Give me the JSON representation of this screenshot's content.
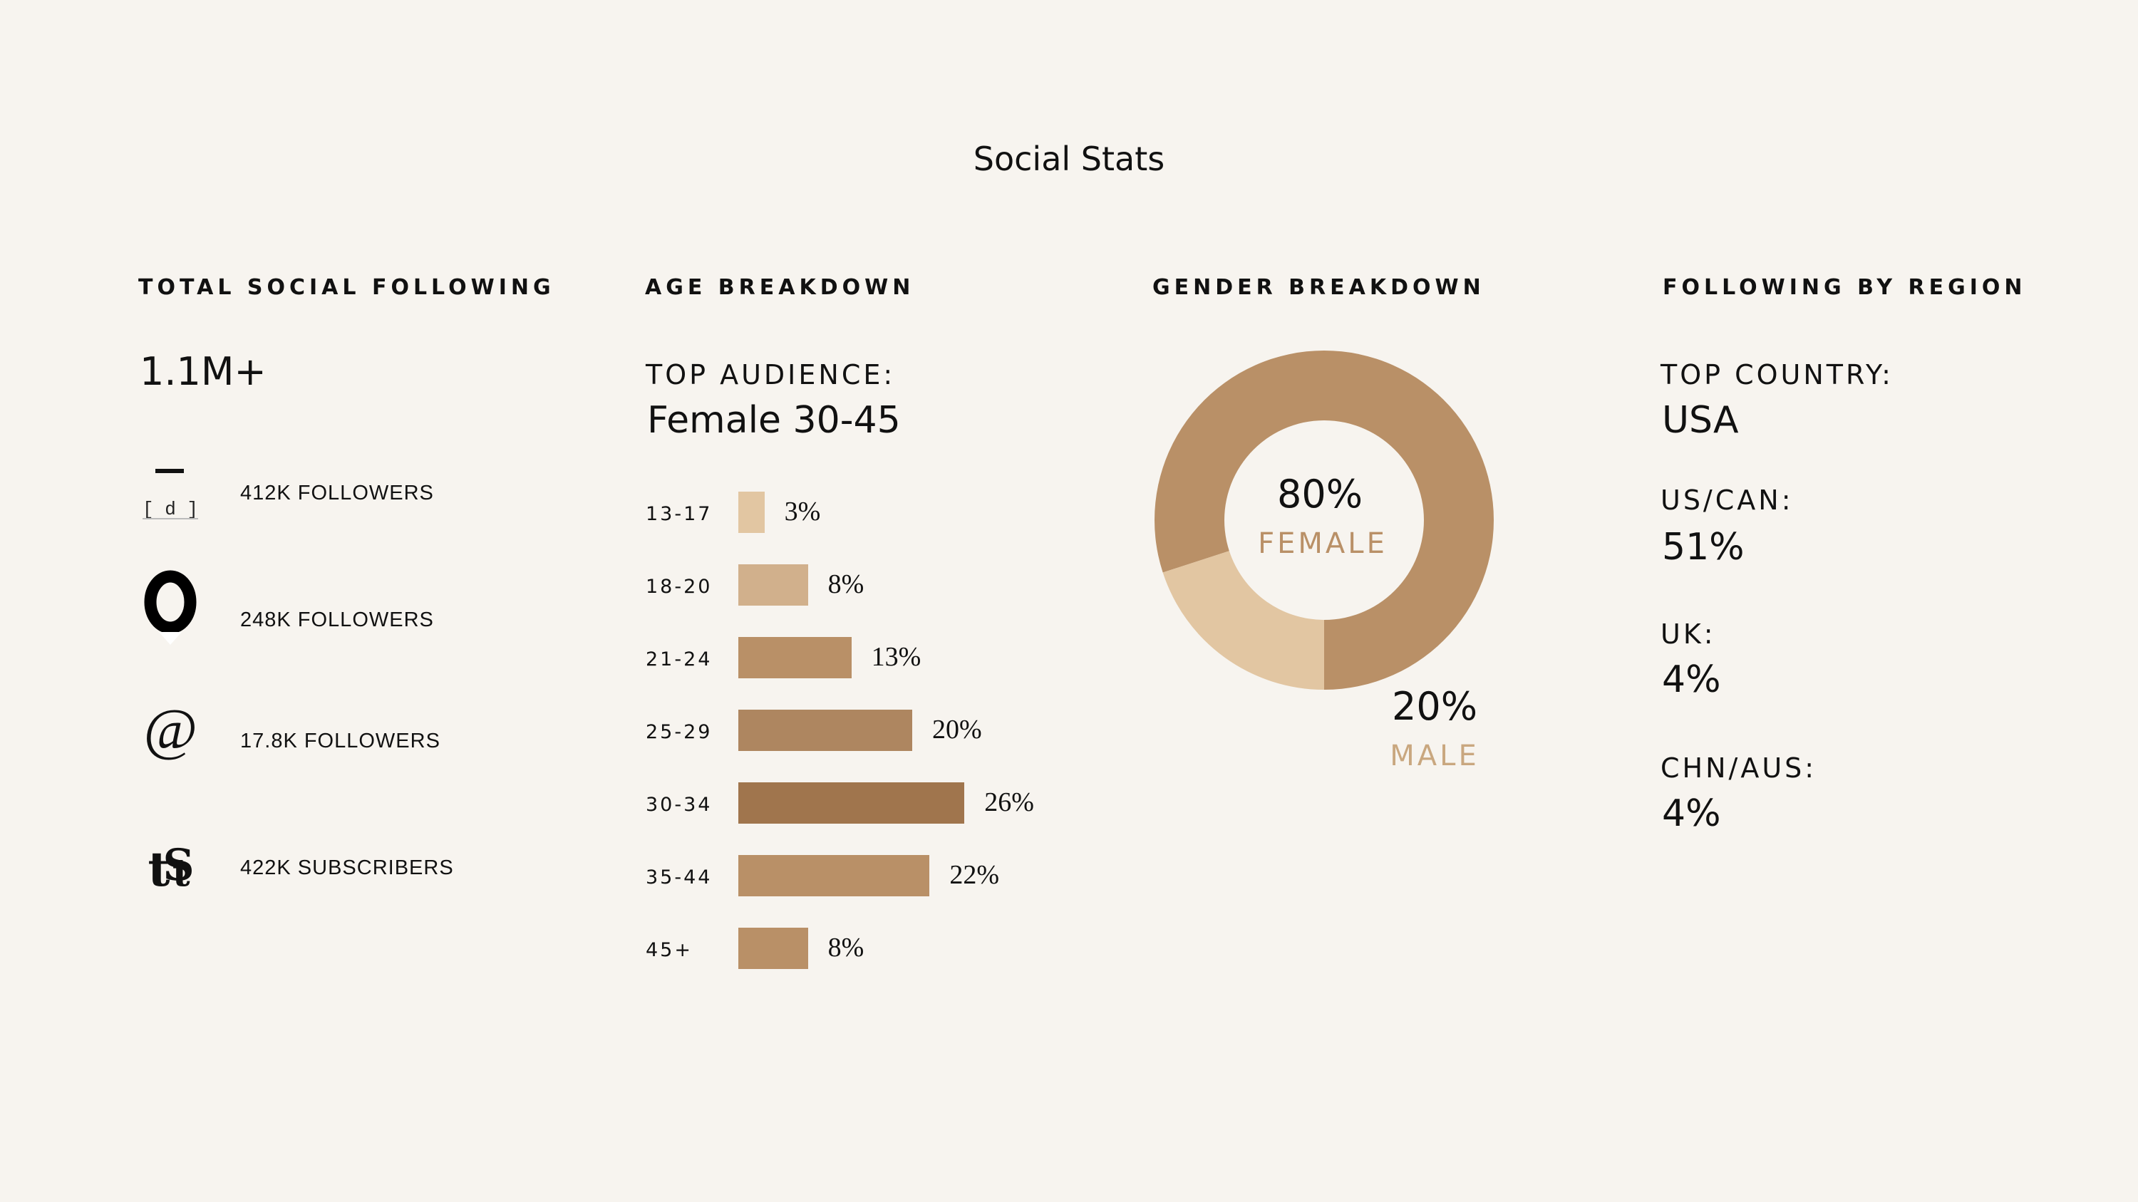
{
  "title": "Social Stats",
  "sections": {
    "total": "TOTAL SOCIAL FOLLOWING",
    "age": "AGE BREAKDOWN",
    "gender": "GENDER BREAKDOWN",
    "region": "FOLLOWING BY REGION"
  },
  "total_following": "1.1M+",
  "socials": [
    {
      "icon": "newspaper-logo-icon",
      "text": "412K FOLLOWERS"
    },
    {
      "icon": "zero-logo-icon",
      "text": "248K FOLLOWERS"
    },
    {
      "icon": "at-sign-icon",
      "text": "17.8K FOLLOWERS"
    },
    {
      "icon": "ts-monogram-icon",
      "text": "422K SUBSCRIBERS"
    }
  ],
  "top_audience": {
    "label": "TOP AUDIENCE:",
    "value": "Female 30-45"
  },
  "colors": {
    "background": "#f7f4ef",
    "female": "#b99067",
    "male": "#e2c6a2",
    "bar_palette": [
      "#e2c6a2",
      "#d1b08c",
      "#b99067",
      "#ae8660",
      "#a0754d",
      "#b99067",
      "#b99067"
    ]
  },
  "gender": {
    "female_pct": "80%",
    "female_label": "FEMALE",
    "male_pct": "20%",
    "male_label": "MALE"
  },
  "region": {
    "top_label": "TOP COUNTRY:",
    "top_value": "USA",
    "items": [
      {
        "label": "US/CAN:",
        "value": "51%"
      },
      {
        "label": "UK:",
        "value": "4%"
      },
      {
        "label": "CHN/AUS:",
        "value": "4%"
      }
    ]
  },
  "chart_data": [
    {
      "type": "bar",
      "orientation": "horizontal",
      "title": "AGE BREAKDOWN",
      "categories": [
        "13-17",
        "18-20",
        "21-24",
        "25-29",
        "30-34",
        "35-44",
        "45+"
      ],
      "values": [
        3,
        8,
        13,
        20,
        26,
        22,
        8
      ],
      "value_labels": [
        "3%",
        "8%",
        "13%",
        "20%",
        "26%",
        "22%",
        "8%"
      ]
    },
    {
      "type": "pie",
      "title": "GENDER BREAKDOWN",
      "categories": [
        "FEMALE",
        "MALE"
      ],
      "values": [
        80,
        20
      ],
      "value_labels": [
        "80%",
        "20%"
      ]
    }
  ]
}
